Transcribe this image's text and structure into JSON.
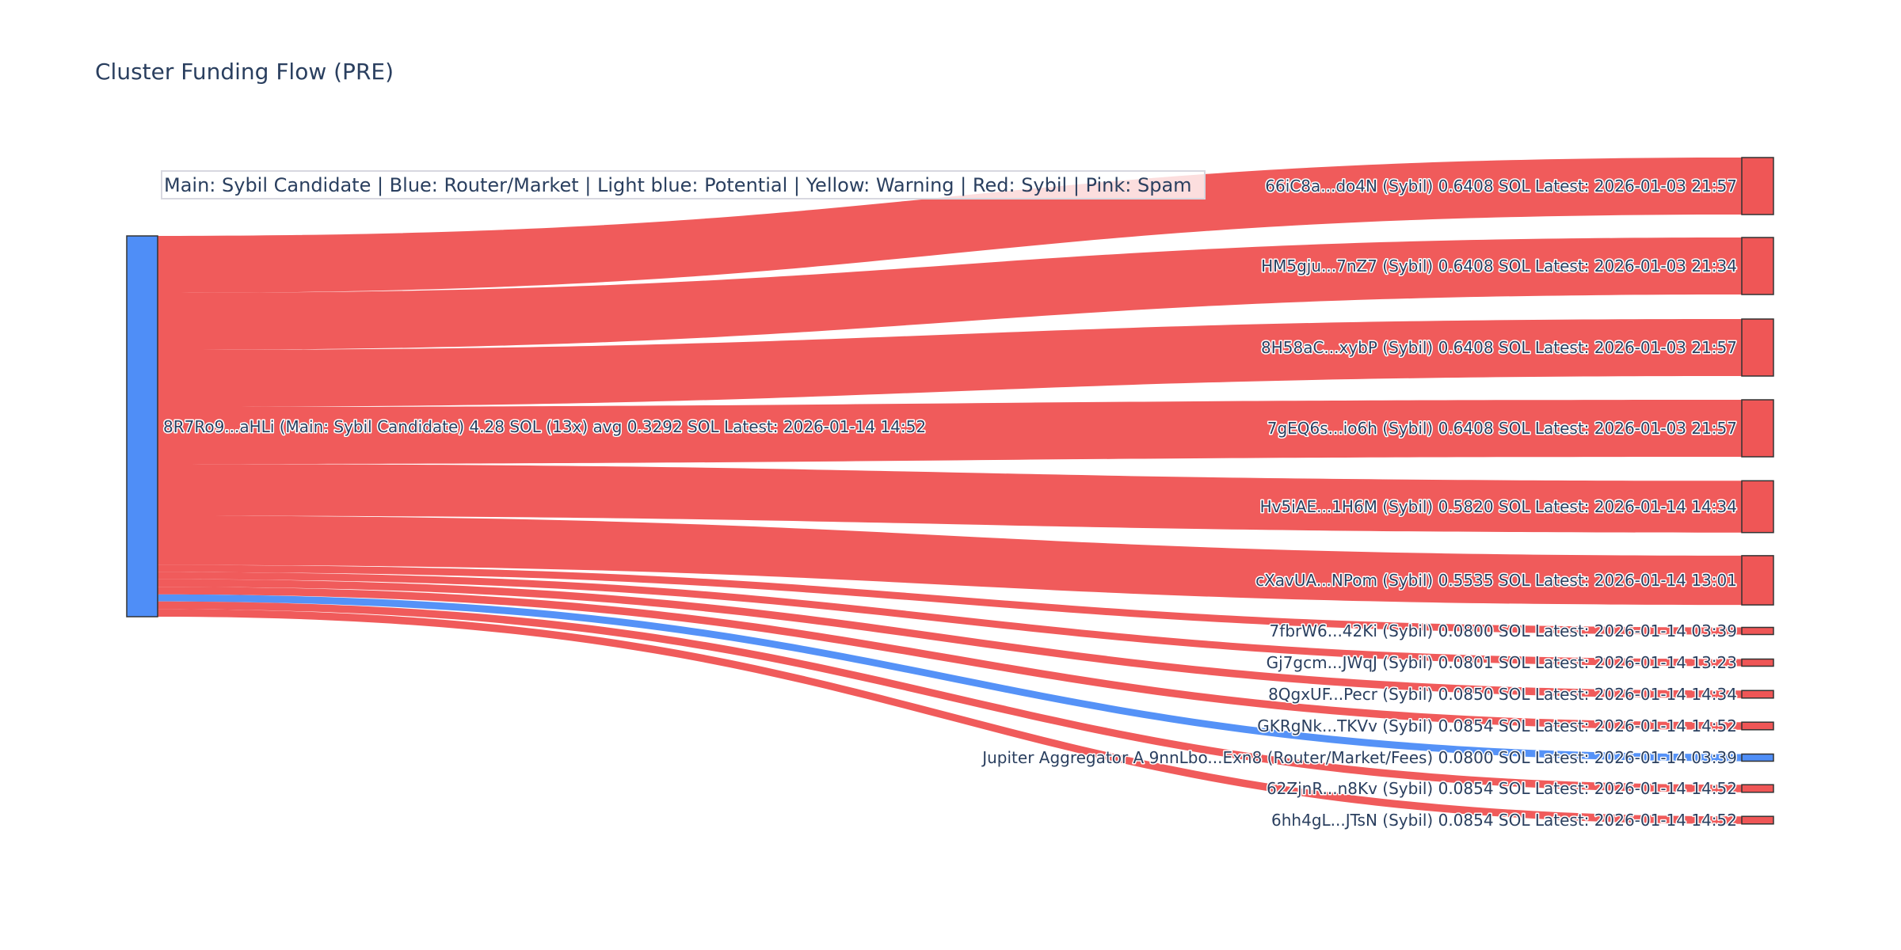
{
  "chart_data": {
    "type": "sankey",
    "title": "Cluster Funding Flow (PRE)",
    "legend_note": "Main: Sybil Candidate  |  Blue: Router/Market | Light blue: Potential | Yellow: Warning | Red: Sybil | Pink: Spam",
    "colors": {
      "main": "#4f8ef7",
      "router": "#4f8ef7",
      "sybil": "#ef5656"
    },
    "source": {
      "label": "8R7Ro9...aHLi (Main: Sybil Candidate) 4.28 SOL (13x) avg 0.3292 SOL Latest: 2026-01-14 14:52",
      "category": "main",
      "total": 4.28
    },
    "targets": [
      {
        "label": "66iC8a...do4N (Sybil) 0.6408 SOL Latest: 2026-01-03 21:57",
        "value": 0.6408,
        "category": "sybil"
      },
      {
        "label": "HM5gju...7nZ7 (Sybil) 0.6408 SOL Latest: 2026-01-03 21:34",
        "value": 0.6408,
        "category": "sybil"
      },
      {
        "label": "8H58aC...xybP (Sybil) 0.6408 SOL Latest: 2026-01-03 21:57",
        "value": 0.6408,
        "category": "sybil"
      },
      {
        "label": "7gEQ6s...io6h (Sybil) 0.6408 SOL Latest: 2026-01-03 21:57",
        "value": 0.6408,
        "category": "sybil"
      },
      {
        "label": "Hv5iAE...1H6M (Sybil) 0.5820 SOL Latest: 2026-01-14 14:34",
        "value": 0.582,
        "category": "sybil"
      },
      {
        "label": "cXavUA...NPom (Sybil) 0.5535 SOL Latest: 2026-01-14 13:01",
        "value": 0.5535,
        "category": "sybil"
      },
      {
        "label": "7fbrW6...42Ki (Sybil) 0.0800 SOL Latest: 2026-01-14 03:39",
        "value": 0.08,
        "category": "sybil"
      },
      {
        "label": "Gj7gcm...JWqJ (Sybil) 0.0801 SOL Latest: 2026-01-14 13:23",
        "value": 0.0801,
        "category": "sybil"
      },
      {
        "label": "8QgxUF...Pecr (Sybil) 0.0850 SOL Latest: 2026-01-14 14:34",
        "value": 0.085,
        "category": "sybil"
      },
      {
        "label": "GKRgNk...TKVv (Sybil) 0.0854 SOL Latest: 2026-01-14 14:52",
        "value": 0.0854,
        "category": "sybil"
      },
      {
        "label": "Jupiter Aggregator A 9nnLbo...Exn8 (Router/Market/Fees) 0.0800 SOL Latest: 2026-01-14 03:39",
        "value": 0.08,
        "category": "router"
      },
      {
        "label": "62ZjnR...n8Kv (Sybil) 0.0854 SOL Latest: 2026-01-14 14:52",
        "value": 0.0854,
        "category": "sybil"
      },
      {
        "label": "6hh4gL...JTsN (Sybil) 0.0854 SOL Latest: 2026-01-14 14:52",
        "value": 0.0854,
        "category": "sybil"
      }
    ]
  }
}
